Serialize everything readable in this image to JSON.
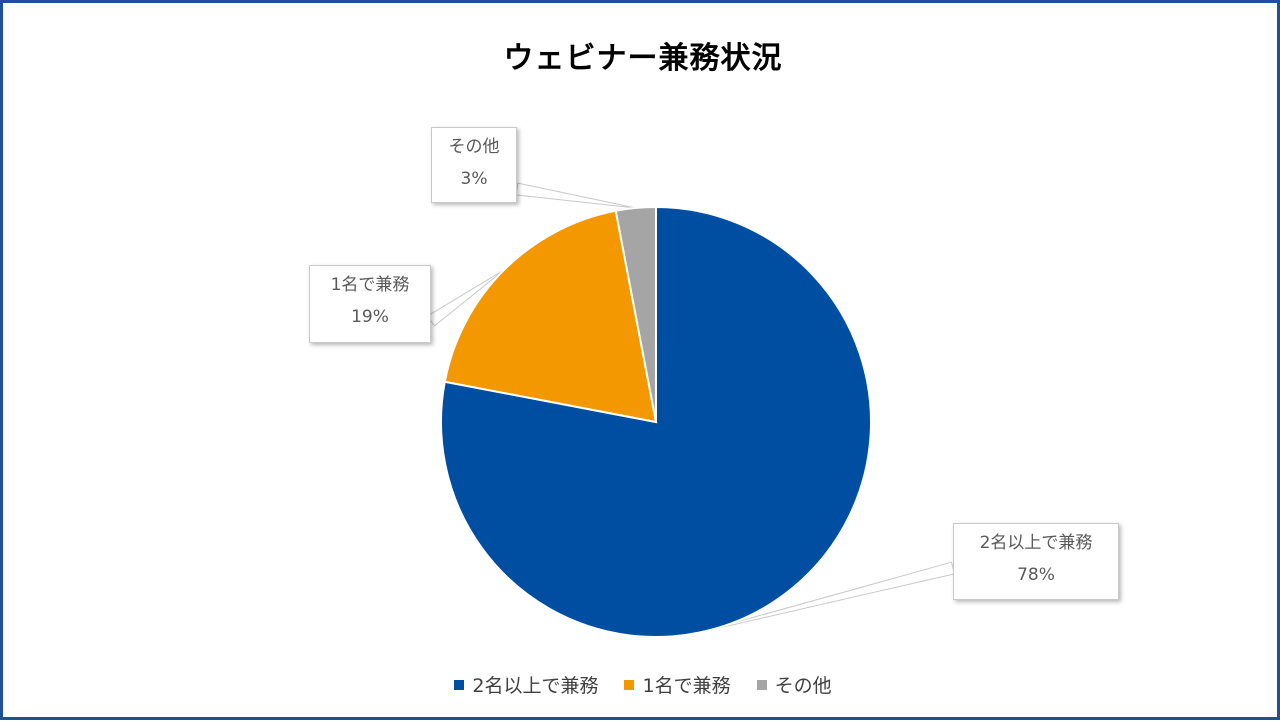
{
  "chart_data": {
    "type": "pie",
    "title": "ウェビナー兼務状況",
    "categories": [
      "2名以上で兼務",
      "1名で兼務",
      "その他"
    ],
    "values": [
      78,
      19,
      3
    ],
    "labels": [
      "78%",
      "19%",
      "3%"
    ],
    "colors": [
      "#004ea2",
      "#f39800",
      "#a5a5a5"
    ],
    "legend_position": "bottom"
  }
}
